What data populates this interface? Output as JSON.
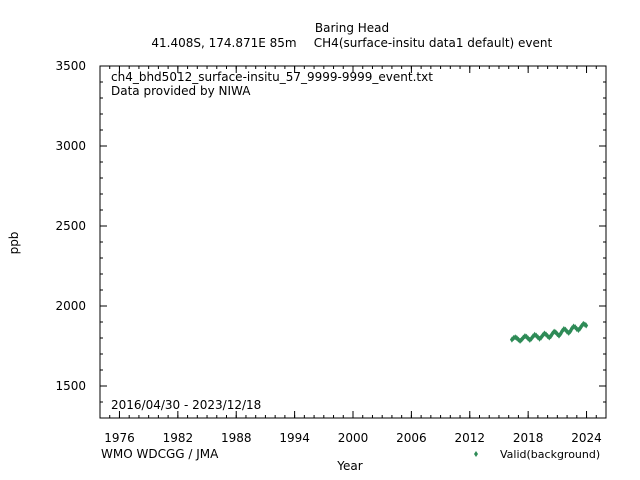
{
  "header": {
    "title": "Baring Head",
    "subtitle_location": "41.408S, 174.871E 85m",
    "subtitle_series": "CH4(surface-insitu data1 default) event"
  },
  "annotations": {
    "filename": "ch4_bhd5012_surface-insitu_57_9999-9999_event.txt",
    "provider": "Data provided by NIWA",
    "date_range": "2016/04/30 - 2023/12/18"
  },
  "credit": "WMO WDCGG / JMA",
  "colors": {
    "series": "#2e8b57",
    "credit": "#a0a0a0",
    "axis": "#000000"
  },
  "chart_data": {
    "type": "scatter",
    "xlabel": "Year",
    "ylabel": "ppb",
    "xlim": [
      1974,
      2026
    ],
    "ylim": [
      1300,
      3500
    ],
    "x_ticks": [
      1976,
      1982,
      1988,
      1994,
      2000,
      2006,
      2012,
      2018,
      2024
    ],
    "y_ticks": [
      1500,
      2000,
      2500,
      3000,
      3500
    ],
    "grid": false,
    "legend_position": "bottom-right",
    "series": [
      {
        "name": "Valid(background)",
        "marker": "diamond",
        "x": [
          2016.33,
          2016.5,
          2016.67,
          2016.83,
          2017.0,
          2017.17,
          2017.33,
          2017.5,
          2017.67,
          2017.83,
          2018.0,
          2018.17,
          2018.33,
          2018.5,
          2018.67,
          2018.83,
          2019.0,
          2019.17,
          2019.33,
          2019.5,
          2019.67,
          2019.83,
          2020.0,
          2020.17,
          2020.33,
          2020.5,
          2020.67,
          2020.83,
          2021.0,
          2021.17,
          2021.33,
          2021.5,
          2021.67,
          2021.83,
          2022.0,
          2022.17,
          2022.33,
          2022.5,
          2022.67,
          2022.83,
          2023.0,
          2023.17,
          2023.33,
          2023.5,
          2023.67,
          2023.83,
          2023.96
        ],
        "y": [
          1790,
          1800,
          1805,
          1800,
          1790,
          1782,
          1790,
          1802,
          1812,
          1808,
          1797,
          1788,
          1796,
          1810,
          1820,
          1815,
          1805,
          1795,
          1803,
          1817,
          1828,
          1823,
          1812,
          1803,
          1812,
          1828,
          1840,
          1836,
          1824,
          1815,
          1826,
          1844,
          1856,
          1852,
          1840,
          1832,
          1842,
          1860,
          1872,
          1868,
          1856,
          1850,
          1860,
          1876,
          1888,
          1884,
          1878
        ]
      }
    ]
  }
}
